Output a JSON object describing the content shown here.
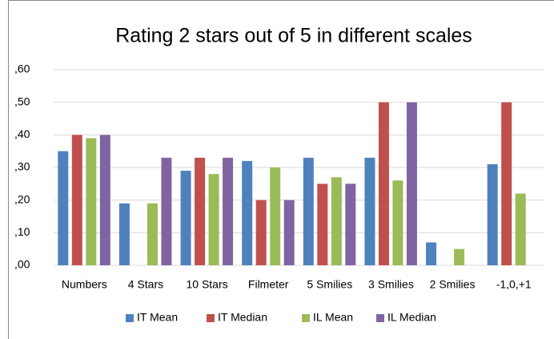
{
  "chart_data": {
    "type": "bar",
    "title": "Rating 2 stars out of 5 in different scales",
    "categories": [
      "Numbers",
      "4 Stars",
      "10 Stars",
      "Filmeter",
      "5 Smilies",
      "3 Smilies",
      "2 Smilies",
      "-1,0,+1"
    ],
    "series": [
      {
        "name": "IT Mean",
        "color": "#4f81bd",
        "values": [
          0.35,
          0.19,
          0.29,
          0.32,
          0.33,
          0.33,
          0.07,
          0.31
        ]
      },
      {
        "name": "IT Median",
        "color": "#c0504d",
        "values": [
          0.4,
          null,
          0.33,
          0.2,
          0.25,
          0.5,
          null,
          0.5
        ]
      },
      {
        "name": "IL Mean",
        "color": "#9bbb59",
        "values": [
          0.39,
          0.19,
          0.28,
          0.3,
          0.27,
          0.26,
          0.05,
          0.22
        ]
      },
      {
        "name": "IL Median",
        "color": "#8064a2",
        "values": [
          0.4,
          0.33,
          0.33,
          0.2,
          0.25,
          0.5,
          null,
          null
        ]
      }
    ],
    "ylim": [
      0,
      0.6
    ],
    "yticks": [
      {
        "value": 0,
        "label": ",00"
      },
      {
        "value": 0.1,
        "label": ",10"
      },
      {
        "value": 0.2,
        "label": ",20"
      },
      {
        "value": 0.3,
        "label": ",30"
      },
      {
        "value": 0.4,
        "label": ",40"
      },
      {
        "value": 0.5,
        "label": ",50"
      },
      {
        "value": 0.6,
        "label": ",60"
      }
    ],
    "grid": true,
    "legend": "bottom"
  }
}
